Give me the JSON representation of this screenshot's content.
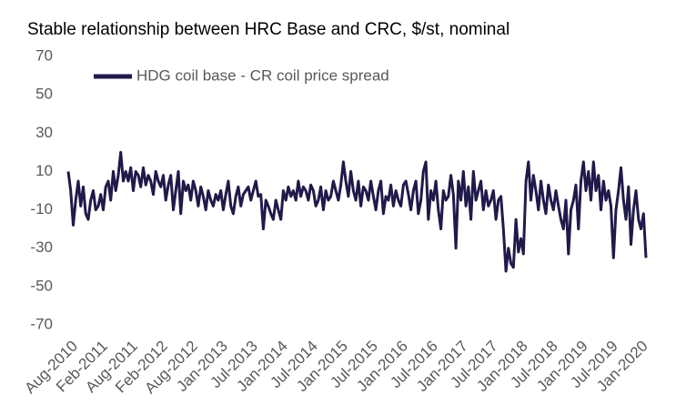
{
  "chart_data": {
    "type": "line",
    "title": "Stable relationship between HRC Base and CRC, $/st, nominal",
    "categories": [
      "Aug-2010",
      null,
      null,
      null,
      null,
      null,
      null,
      null,
      null,
      null,
      null,
      null,
      "Feb-2011",
      null,
      null,
      null,
      null,
      null,
      null,
      null,
      null,
      null,
      null,
      null,
      "Aug-2011",
      null,
      null,
      null,
      null,
      null,
      null,
      null,
      null,
      null,
      null,
      null,
      "Feb-2012",
      null,
      null,
      null,
      null,
      null,
      null,
      null,
      null,
      null,
      null,
      null,
      "Aug-2012",
      null,
      null,
      null,
      null,
      null,
      null,
      null,
      null,
      null,
      null,
      null,
      "Jan-2013",
      null,
      null,
      null,
      null,
      null,
      null,
      null,
      null,
      null,
      null,
      null,
      "Jul-2013",
      null,
      null,
      null,
      null,
      null,
      null,
      null,
      null,
      null,
      null,
      null,
      "Jan-2014",
      null,
      null,
      null,
      null,
      null,
      null,
      null,
      null,
      null,
      null,
      null,
      "Jul-2014",
      null,
      null,
      null,
      null,
      null,
      null,
      null,
      null,
      null,
      null,
      null,
      "Jan-2015",
      null,
      null,
      null,
      null,
      null,
      null,
      null,
      null,
      null,
      null,
      null,
      "Jul-2015",
      null,
      null,
      null,
      null,
      null,
      null,
      null,
      null,
      null,
      null,
      null,
      "Jan-2016",
      null,
      null,
      null,
      null,
      null,
      null,
      null,
      null,
      null,
      null,
      null,
      "Jul-2016",
      null,
      null,
      null,
      null,
      null,
      null,
      null,
      null,
      null,
      null,
      null,
      "Jan-2017",
      null,
      null,
      null,
      null,
      null,
      null,
      null,
      null,
      null,
      null,
      null,
      "Jul-2017",
      null,
      null,
      null,
      null,
      null,
      null,
      null,
      null,
      null,
      null,
      null,
      "Jan-2018",
      null,
      null,
      null,
      null,
      null,
      null,
      null,
      null,
      null,
      null,
      null,
      "Jul-2018",
      null,
      null,
      null,
      null,
      null,
      null,
      null,
      null,
      null,
      null,
      null,
      "Jan-2019",
      null,
      null,
      null,
      null,
      null,
      null,
      null,
      null,
      null,
      null,
      null,
      "Jul-2019",
      null,
      null,
      null,
      null,
      null,
      null,
      null,
      null,
      null,
      null,
      null,
      "Jan-2020",
      null,
      null,
      null
    ],
    "series": [
      {
        "name": "HDG coil base - CR coil price spread",
        "color": "#1f1a4a",
        "values": [
          10,
          0,
          -18,
          -5,
          5,
          -8,
          2,
          -12,
          -15,
          -5,
          0,
          -10,
          -8,
          -2,
          -10,
          2,
          5,
          -5,
          10,
          0,
          8,
          20,
          5,
          10,
          5,
          12,
          0,
          10,
          8,
          2,
          12,
          3,
          8,
          5,
          -2,
          10,
          5,
          2,
          8,
          -5,
          3,
          8,
          -10,
          0,
          10,
          -12,
          5,
          0,
          3,
          -5,
          5,
          0,
          -8,
          2,
          -3,
          -10,
          0,
          -5,
          -8,
          -2,
          -5,
          0,
          -10,
          -2,
          5,
          -8,
          -12,
          -3,
          2,
          -8,
          -2,
          0,
          2,
          -5,
          0,
          5,
          -3,
          -2,
          -20,
          -5,
          -8,
          -12,
          -15,
          -5,
          -10,
          -15,
          0,
          -5,
          2,
          -3,
          0,
          -5,
          5,
          -3,
          2,
          0,
          -5,
          3,
          0,
          -8,
          -5,
          2,
          -10,
          0,
          -5,
          -3,
          5,
          0,
          -5,
          3,
          15,
          5,
          -3,
          10,
          0,
          -5,
          5,
          -8,
          2,
          0,
          -5,
          5,
          -3,
          -10,
          0,
          5,
          -12,
          -3,
          -5,
          3,
          -8,
          0,
          -5,
          -8,
          3,
          5,
          -2,
          -10,
          0,
          5,
          -12,
          -5,
          10,
          15,
          -15,
          0,
          -5,
          5,
          -10,
          -20,
          0,
          -5,
          -3,
          8,
          -2,
          -30,
          5,
          -5,
          10,
          -8,
          2,
          -15,
          10,
          -5,
          0,
          5,
          -10,
          0,
          -8,
          -5,
          0,
          -15,
          -5,
          -3,
          -20,
          -42,
          -30,
          -38,
          -40,
          -15,
          -32,
          -25,
          -33,
          5,
          15,
          -5,
          8,
          0,
          -10,
          5,
          -5,
          -12,
          3,
          -5,
          -10,
          0,
          -8,
          -15,
          -20,
          -5,
          -33,
          -10,
          -5,
          3,
          -20,
          5,
          15,
          0,
          10,
          -5,
          15,
          0,
          8,
          -10,
          5,
          -5,
          0,
          -8,
          -35,
          -10,
          0,
          12,
          -5,
          -15,
          2,
          -28,
          -10,
          0,
          -15,
          -20,
          -12,
          -35
        ]
      }
    ],
    "ylim": [
      -70,
      70
    ],
    "yticks": [
      -70,
      -50,
      -30,
      -10,
      10,
      30,
      50,
      70
    ],
    "grid": false,
    "legend": "top-left"
  }
}
